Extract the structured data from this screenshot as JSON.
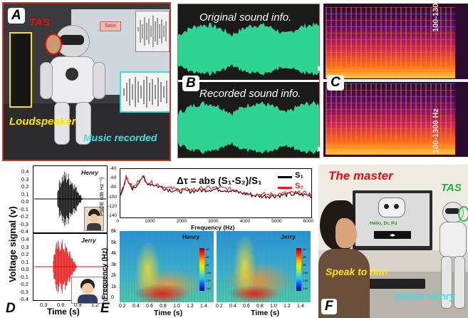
{
  "panel_a": {
    "label": "A",
    "tas": "TAS",
    "loudspeaker": "Loudspeaker",
    "music": "Music recorded",
    "screen_button": "Save"
  },
  "panel_b": {
    "label": "B",
    "original": "Original sound info.",
    "recorded": "Recorded sound info."
  },
  "panel_c": {
    "label": "C",
    "freq_label_top": "100-1300 Hz",
    "freq_label_bottom": "100-1300 Hz"
  },
  "panel_d": {
    "label": "D",
    "ylabel": "Voltage signal (v)",
    "xlabel": "Time (s)",
    "top_name": "Henry",
    "bottom_name": "Jerry",
    "yticks": [
      "0.4",
      "0.3",
      "0.2",
      "0.1",
      "0.0",
      "-0.1",
      "-0.2",
      "-0.3",
      "-0.4"
    ],
    "xticks": [
      "0.3",
      "0.6",
      "0.9",
      "1.2"
    ]
  },
  "panel_e": {
    "label": "E",
    "psd_ylabel": "PSDE (dB Hz⁻¹)",
    "psd_xlabel": "Frequency (Hz)",
    "psd_yticks": [
      "-40",
      "-60",
      "-80",
      "-100",
      "-120",
      "-140"
    ],
    "psd_xticks": [
      "0",
      "1000",
      "2000",
      "3000",
      "4000",
      "5000",
      "6000"
    ],
    "formula": "Δτ = abs (S₁-S₂)/S₁",
    "legend": [
      "S₁",
      "S₂"
    ],
    "spec_ylabel": "Frequency (Hz)",
    "spec_xlabel": "Time (s)",
    "spec_yticks": [
      "6k",
      "5k",
      "4k",
      "3k",
      "2k",
      "1k",
      "0"
    ],
    "spec_xticks": [
      "0.2",
      "0.4",
      "0.6",
      "0.8",
      "1.0",
      "1.2",
      "1.4"
    ],
    "spec_names": [
      "Henry",
      "Jerry"
    ],
    "cbar_ticks": [
      "-40",
      "-60",
      "-80",
      "-100",
      "-120",
      "-140"
    ]
  },
  "panel_f": {
    "label": "F",
    "master": "The master",
    "tas": "TAS",
    "speak": "Speak to him",
    "robot": "Robot Henry",
    "screen_text": "Hello, Dr. Pu"
  },
  "colors": {
    "waveform": "#2fd494",
    "s1": "#000000",
    "s2": "#e02020",
    "red_label": "#e01010",
    "yellow_label": "#ffe600",
    "cyan_label": "#3fe0e0"
  }
}
